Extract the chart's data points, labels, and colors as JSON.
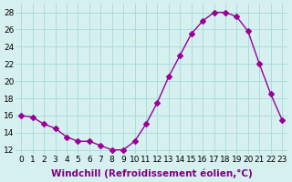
{
  "x": [
    0,
    1,
    2,
    3,
    4,
    5,
    6,
    7,
    8,
    9,
    10,
    11,
    12,
    13,
    14,
    15,
    16,
    17,
    18,
    19,
    20,
    21,
    22,
    23
  ],
  "y": [
    16,
    15.8,
    15,
    14.5,
    13.5,
    13,
    13,
    12.5,
    12,
    12,
    13,
    15,
    17.5,
    20.5,
    23,
    25.5,
    27,
    28,
    28,
    27.5,
    25.8,
    22,
    18.5,
    15.5
  ],
  "line_color": "#990099",
  "marker": "D",
  "marker_size": 3,
  "bg_color": "#d6f0f0",
  "grid_color": "#aadddd",
  "xlabel": "Windchill (Refroidissement éolien,°C)",
  "xlim": [
    -0.5,
    23.5
  ],
  "ylim": [
    11.5,
    29
  ],
  "yticks": [
    12,
    14,
    16,
    18,
    20,
    22,
    24,
    26,
    28
  ],
  "xticks": [
    0,
    1,
    2,
    3,
    4,
    5,
    6,
    7,
    8,
    9,
    10,
    11,
    12,
    13,
    14,
    15,
    16,
    17,
    18,
    19,
    20,
    21,
    22,
    23
  ],
  "tick_fontsize": 6.5,
  "xlabel_fontsize": 7.5
}
